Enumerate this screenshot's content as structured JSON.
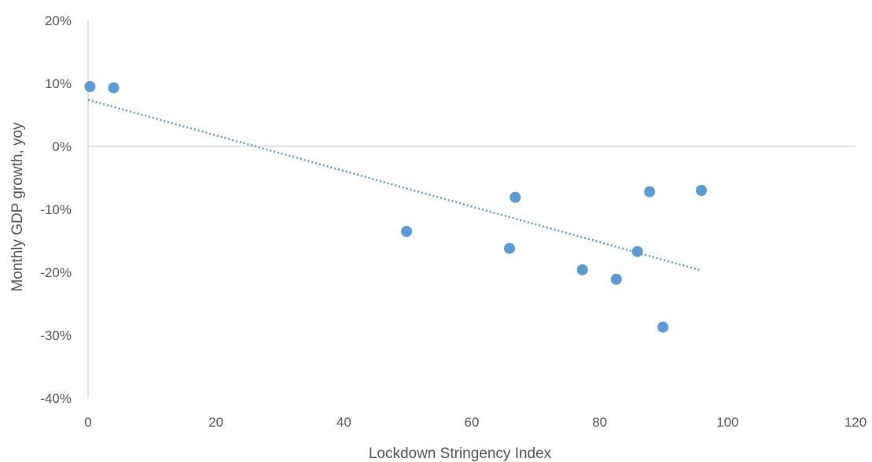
{
  "chart_data": {
    "type": "scatter",
    "title": "",
    "xlabel": "Lockdown Stringency Index",
    "ylabel": "Monthly GDP growth, yoy",
    "xlim": [
      0,
      120
    ],
    "ylim": [
      -40,
      20
    ],
    "xticks": [
      0,
      20,
      40,
      60,
      80,
      100,
      120
    ],
    "yticks": [
      -40,
      -30,
      -20,
      -10,
      0,
      10,
      20
    ],
    "ytick_labels": [
      "-40%",
      "-30%",
      "-20%",
      "-10%",
      "0%",
      "10%",
      "20%"
    ],
    "grid": false,
    "legend": "none",
    "series": [
      {
        "color": "#5b9bd5",
        "points": [
          {
            "x": 0.3,
            "y": 9.5
          },
          {
            "x": 4.0,
            "y": 9.3
          },
          {
            "x": 49.8,
            "y": -13.5
          },
          {
            "x": 65.9,
            "y": -16.2
          },
          {
            "x": 66.8,
            "y": -8.1
          },
          {
            "x": 77.3,
            "y": -19.6
          },
          {
            "x": 82.6,
            "y": -21.1
          },
          {
            "x": 85.9,
            "y": -16.7
          },
          {
            "x": 87.8,
            "y": -7.2
          },
          {
            "x": 89.9,
            "y": -28.7
          },
          {
            "x": 95.9,
            "y": -7.0
          }
        ]
      }
    ],
    "trendline": {
      "type": "linear",
      "style": "dotted",
      "color": "#5b9bd5",
      "x_start": 0,
      "y_start": 7.4,
      "x_end": 95.9,
      "y_end": -19.7
    }
  }
}
